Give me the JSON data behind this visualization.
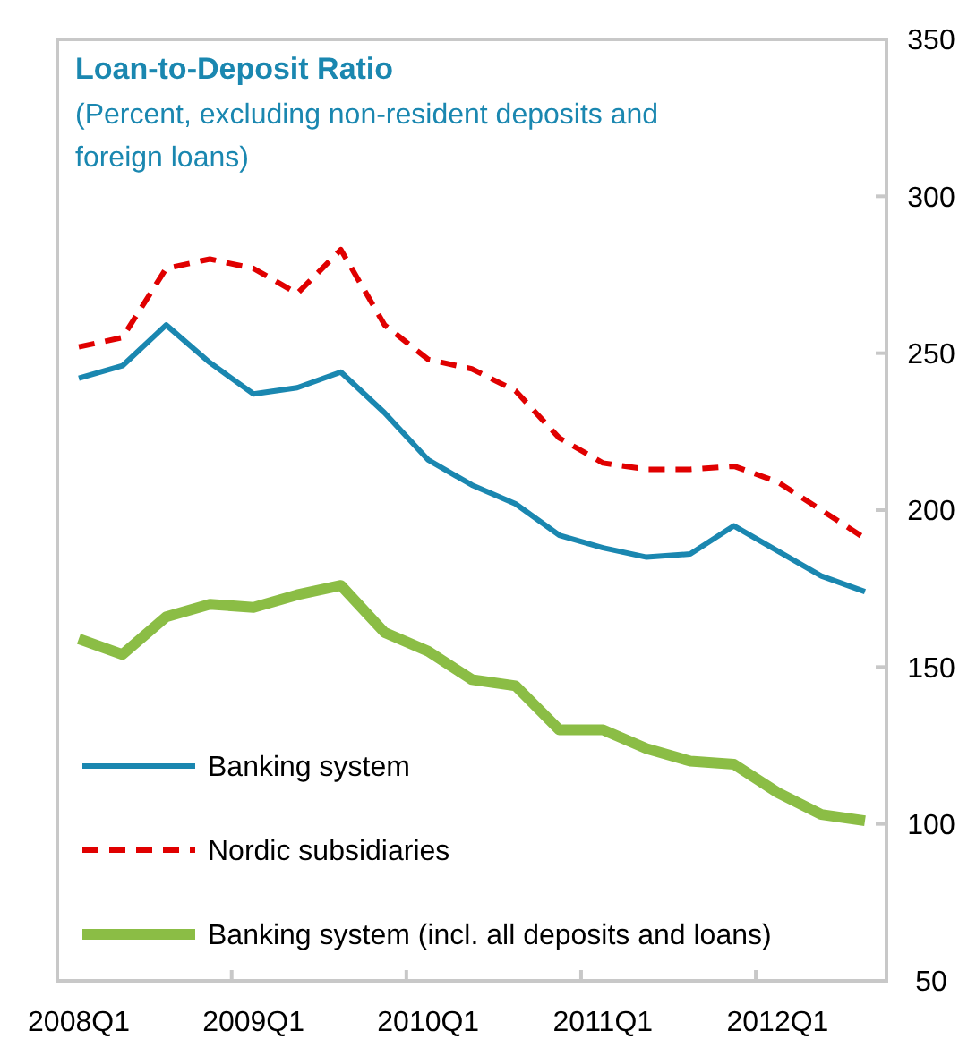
{
  "chart_data": {
    "type": "line",
    "title": "Loan-to-Deposit Ratio",
    "subtitle": "(Percent, excluding non-resident deposits and foreign loans)",
    "categories": [
      "2008Q1",
      null,
      null,
      null,
      "2009Q1",
      null,
      null,
      null,
      "2010Q1",
      null,
      null,
      null,
      "2011Q1",
      null,
      null,
      null,
      "2012Q1",
      null,
      null
    ],
    "series": [
      {
        "name": "Banking system",
        "color": "#1a87b0",
        "line_style": "solid",
        "values": [
          242,
          246,
          259,
          247,
          237,
          239,
          244,
          231,
          216,
          208,
          202,
          192,
          188,
          185,
          186,
          195,
          187,
          179,
          174
        ]
      },
      {
        "name": "Nordic subsidiaries",
        "color": "#e00000",
        "line_style": "dashed",
        "values": [
          252,
          255,
          277,
          280,
          277,
          269,
          283,
          259,
          248,
          245,
          238,
          223,
          215,
          213,
          213,
          214,
          209,
          200,
          191
        ]
      },
      {
        "name": "Banking system (incl. all deposits and loans)",
        "color": "#8bbd45",
        "line_style": "solid",
        "values": [
          159,
          154,
          166,
          170,
          169,
          173,
          176,
          161,
          155,
          146,
          144,
          130,
          130,
          124,
          120,
          119,
          110,
          103,
          101
        ]
      }
    ],
    "ylim": [
      50,
      350
    ],
    "yticks": [
      50,
      100,
      150,
      200,
      250,
      300,
      350
    ],
    "legend": "bottom left",
    "grid": false
  }
}
